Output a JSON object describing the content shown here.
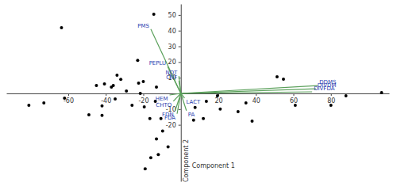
{
  "chart_data": {
    "type": "scatter",
    "x_label": "Component 1",
    "y_label": "Component 2",
    "xlim": [
      -93,
      111
    ],
    "ylim": [
      -56,
      57
    ],
    "xticks": [
      -60,
      -40,
      -20,
      20,
      40,
      60,
      80
    ],
    "yticks": [
      -20,
      -10,
      10,
      20,
      30,
      40,
      50
    ],
    "series": [
      {
        "type": "scatter",
        "color": "#000000",
        "marker": "circle",
        "x": [
          -14.4,
          -63.6,
          -23,
          -34,
          -20,
          -13,
          -40.7,
          -37,
          -81,
          -73,
          -62,
          -42,
          -35,
          -29,
          -21.6,
          -49,
          -42,
          -19.5,
          -26,
          -13.6,
          -16.5,
          -10.6,
          -22.5,
          -32,
          -36,
          -45,
          54.7,
          51.3,
          61,
          107,
          88,
          80,
          34.7,
          30.5,
          38,
          19.5,
          13.6,
          21,
          12,
          6.8,
          7.6,
          -13,
          -6.8,
          -12,
          -16,
          -9.7,
          -19
        ],
        "values": [
          50.5,
          41.9,
          21,
          11.6,
          7.6,
          4,
          6,
          4,
          -7.6,
          -6,
          -3,
          -8,
          -3.5,
          1.5,
          0,
          -13.6,
          -14,
          -8.6,
          -7.6,
          -5,
          -16,
          -16,
          6.6,
          9,
          5,
          5,
          9.1,
          10.6,
          -7.6,
          0.5,
          -1.5,
          -7.6,
          -6,
          -11.6,
          -17.7,
          -1.5,
          -5,
          -10,
          -16,
          -17,
          -9,
          -29,
          -34,
          -39,
          -41,
          -24,
          -48
        ]
      },
      {
        "type": "vector",
        "color": "#5aa05a",
        "labels": [
          "PMS",
          "PEPLU",
          "NDT",
          "CNF",
          "HEM",
          "CHTO",
          "LACT",
          "FDN",
          "FDA",
          "PA",
          "DDMS",
          "DIVDM",
          "DIVFDA"
        ],
        "x": [
          -16,
          -7,
          -1,
          -1,
          -6,
          -4,
          2,
          -3,
          -2,
          3,
          73,
          72,
          70
        ],
        "values": [
          41,
          17,
          11,
          8,
          -1,
          -5,
          -3,
          -11,
          -13,
          -11,
          5,
          3,
          1
        ]
      }
    ]
  }
}
